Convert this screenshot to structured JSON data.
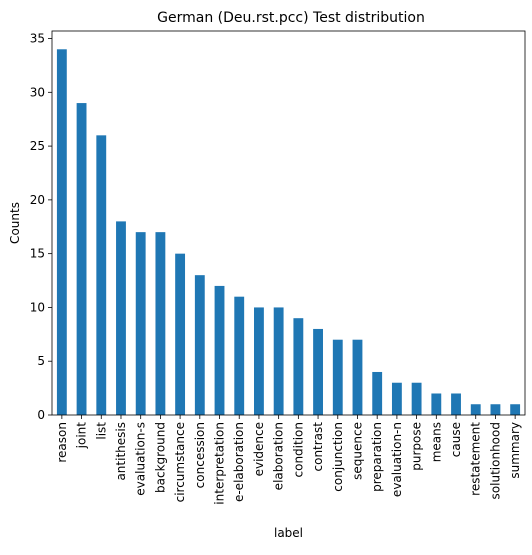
{
  "chart_data": {
    "type": "bar",
    "title": "German (Deu.rst.pcc) Test distribution",
    "xlabel": "label",
    "ylabel": "Counts",
    "ylim": [
      0,
      35.7
    ],
    "yticks": [
      0,
      5,
      10,
      15,
      20,
      25,
      30,
      35
    ],
    "grid": false,
    "legend": "none",
    "bar_color": "#1f77b4",
    "categories": [
      "reason",
      "joint",
      "list",
      "antithesis",
      "evaluation-s",
      "background",
      "circumstance",
      "concession",
      "interpretation",
      "e-elaboration",
      "evidence",
      "elaboration",
      "condition",
      "contrast",
      "conjunction",
      "sequence",
      "preparation",
      "evaluation-n",
      "purpose",
      "means",
      "cause",
      "restatement",
      "solutionhood",
      "summary"
    ],
    "values": [
      34,
      29,
      26,
      18,
      17,
      17,
      15,
      13,
      12,
      11,
      10,
      10,
      9,
      8,
      7,
      7,
      4,
      3,
      3,
      2,
      2,
      1,
      1,
      1
    ]
  }
}
